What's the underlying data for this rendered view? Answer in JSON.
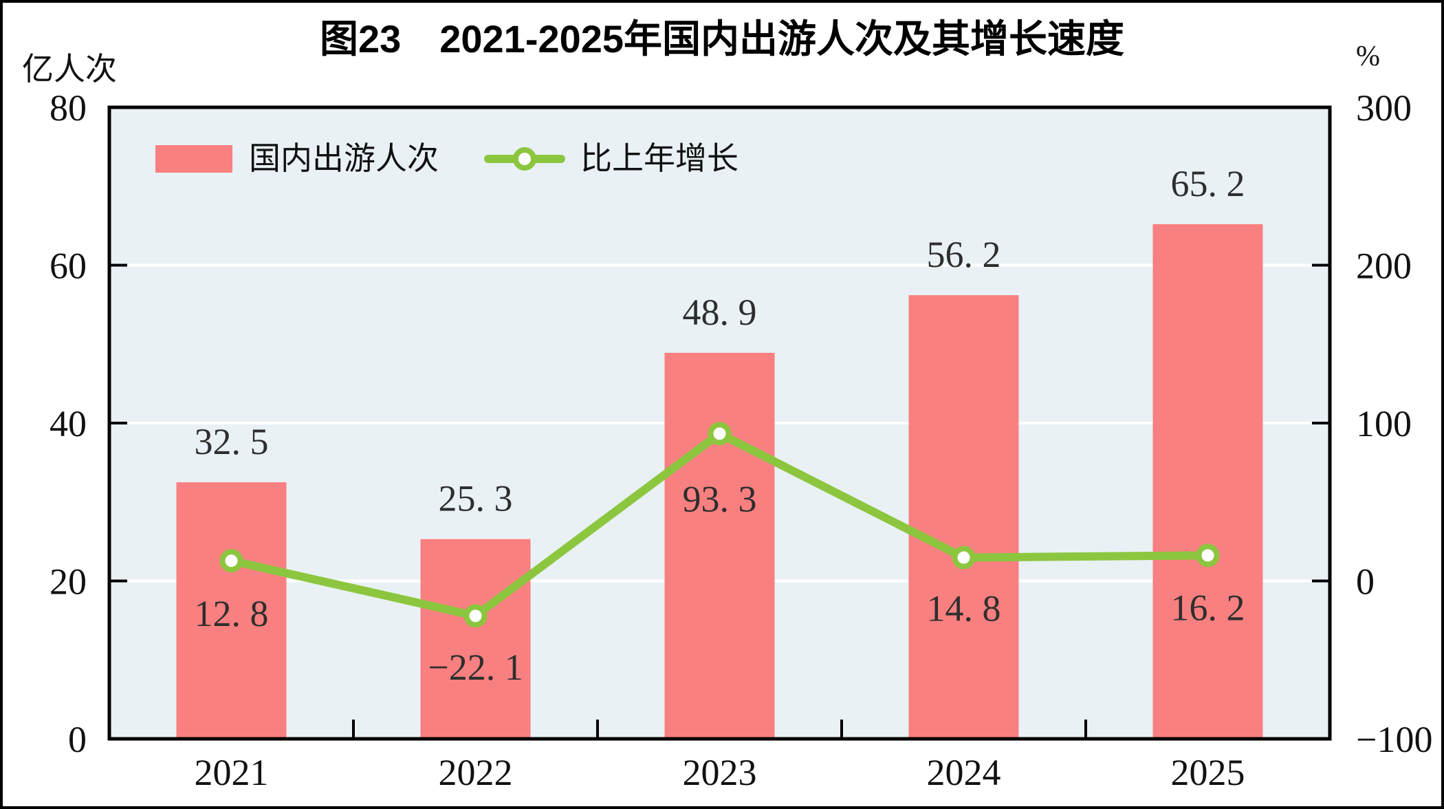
{
  "title": "图23　2021-2025年国内出游人次及其增长速度",
  "colors": {
    "bar": "#F98080",
    "line": "#8CC63F",
    "plot_background": "#E9F1F5",
    "gridline": "#FFFFFF",
    "axis_frame": "#000000",
    "label_text": "#2E2E2E",
    "tick_text": "#111111"
  },
  "chart_data": {
    "type": "bar+line dual-axis combo",
    "title": "图23　2021-2025年国内出游人次及其增长速度",
    "categories": [
      "2021",
      "2022",
      "2023",
      "2024",
      "2025"
    ],
    "series": [
      {
        "name": "国内出游人次",
        "type": "bar",
        "axis": "left",
        "color": "#F98080",
        "values": [
          32.5,
          25.3,
          48.9,
          56.2,
          65.2
        ],
        "labels": [
          "32. 5",
          "25. 3",
          "48. 9",
          "56. 2",
          "65. 2"
        ]
      },
      {
        "name": "比上年增长",
        "type": "line",
        "axis": "right",
        "color": "#8CC63F",
        "marker": "circle, white fill, green ring",
        "values": [
          12.8,
          -22.1,
          93.3,
          14.8,
          16.2
        ],
        "labels": [
          "12. 8",
          "−22. 1",
          "93. 3",
          "14. 8",
          "16. 2"
        ]
      }
    ],
    "left_axis": {
      "unit": "亿人次",
      "min": 0,
      "max": 80,
      "ticks": [
        80,
        60,
        40,
        20,
        0
      ]
    },
    "right_axis": {
      "unit": "%",
      "min": -100,
      "max": 300,
      "ticks": [
        300,
        200,
        100,
        0,
        -100
      ]
    },
    "gridlines": {
      "orientation": "horizontal",
      "at_left_axis_values": [
        60,
        40,
        20
      ],
      "color": "#FFFFFF"
    },
    "legend_position": "top-left inside plot",
    "plot_bg": "#E9F1F5"
  }
}
